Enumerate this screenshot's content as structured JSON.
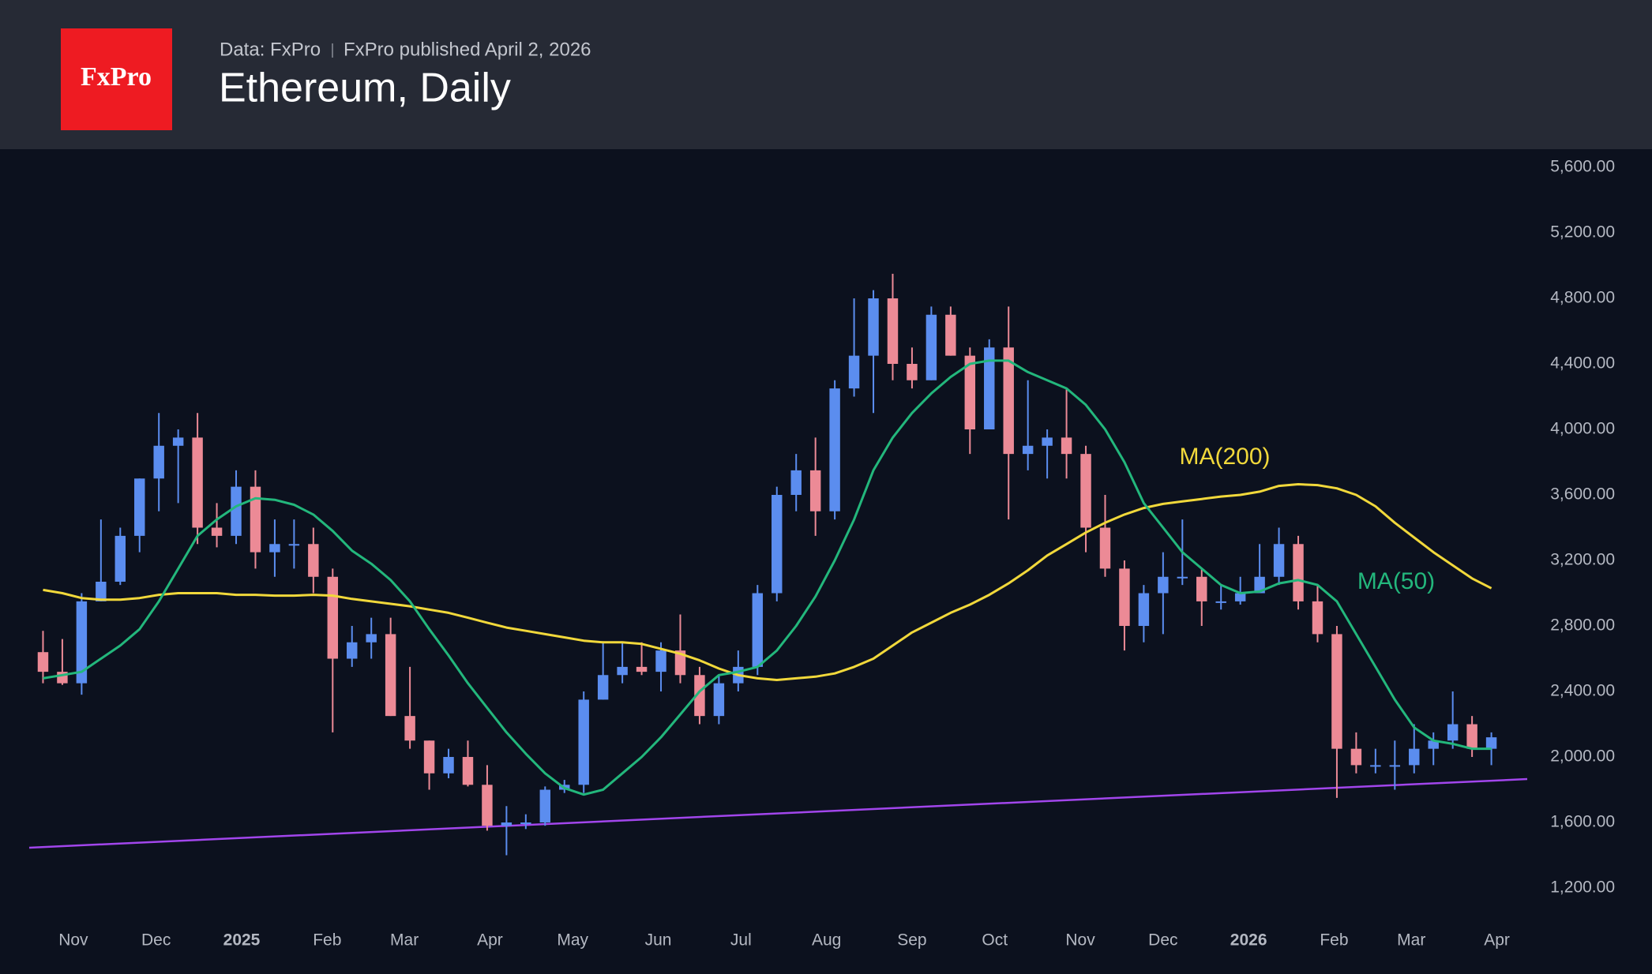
{
  "header": {
    "logo": "FxPro",
    "source": "Data: FxPro",
    "published": "FxPro published April 2, 2026",
    "title": "Ethereum, Daily"
  },
  "chart_data": {
    "type": "candlestick",
    "x": [
      "2024-10-21",
      "2024-10-28",
      "2024-11-04",
      "2024-11-11",
      "2024-11-18",
      "2024-11-25",
      "2024-12-02",
      "2024-12-09",
      "2024-12-16",
      "2024-12-23",
      "2024-12-30",
      "2025-01-06",
      "2025-01-13",
      "2025-01-20",
      "2025-01-27",
      "2025-02-03",
      "2025-02-10",
      "2025-02-17",
      "2025-02-24",
      "2025-03-03",
      "2025-03-10",
      "2025-03-17",
      "2025-03-24",
      "2025-03-31",
      "2025-04-07",
      "2025-04-14",
      "2025-04-21",
      "2025-04-28",
      "2025-05-05",
      "2025-05-12",
      "2025-05-19",
      "2025-05-26",
      "2025-06-02",
      "2025-06-09",
      "2025-06-16",
      "2025-06-23",
      "2025-06-30",
      "2025-07-07",
      "2025-07-14",
      "2025-07-21",
      "2025-07-28",
      "2025-08-04",
      "2025-08-11",
      "2025-08-18",
      "2025-08-25",
      "2025-09-01",
      "2025-09-08",
      "2025-09-15",
      "2025-09-22",
      "2025-09-29",
      "2025-10-06",
      "2025-10-13",
      "2025-10-20",
      "2025-10-27",
      "2025-11-03",
      "2025-11-10",
      "2025-11-17",
      "2025-11-24",
      "2025-12-01",
      "2025-12-08",
      "2025-12-15",
      "2025-12-22",
      "2025-12-29",
      "2026-01-05",
      "2026-01-12",
      "2026-01-19",
      "2026-01-26",
      "2026-02-02",
      "2026-02-09",
      "2026-02-16",
      "2026-02-23",
      "2026-03-02",
      "2026-03-09",
      "2026-03-16",
      "2026-03-23",
      "2026-03-30"
    ],
    "open": [
      2640,
      2520,
      2450,
      2950,
      3070,
      3350,
      3700,
      3900,
      3950,
      3400,
      3350,
      3650,
      3250,
      3300,
      3300,
      3100,
      2600,
      2700,
      2750,
      2250,
      2100,
      1900,
      2000,
      1830,
      1580,
      1600,
      1600,
      1800,
      1830,
      2350,
      2500,
      2550,
      2520,
      2650,
      2500,
      2250,
      2450,
      2550,
      3000,
      3600,
      3750,
      3500,
      4250,
      4450,
      4800,
      4400,
      4300,
      4700,
      4450,
      4000,
      4500,
      3850,
      3900,
      3950,
      3850,
      3400,
      3150,
      2800,
      3000,
      3100,
      3100,
      2950,
      2950,
      3000,
      3100,
      3300,
      2950,
      2750,
      2050,
      1950,
      1950,
      1950,
      2050,
      2100,
      2200,
      2050
    ],
    "high": [
      2770,
      2720,
      3000,
      3450,
      3400,
      3700,
      4100,
      4000,
      4100,
      3550,
      3750,
      3750,
      3450,
      3450,
      3400,
      3150,
      2800,
      2850,
      2850,
      2550,
      2100,
      2050,
      2100,
      1950,
      1700,
      1650,
      1820,
      1860,
      2400,
      2700,
      2700,
      2700,
      2700,
      2870,
      2550,
      2500,
      2650,
      3050,
      3650,
      3850,
      3950,
      4300,
      4800,
      4850,
      4950,
      4500,
      4750,
      4750,
      4500,
      4550,
      4750,
      4300,
      4000,
      4250,
      3900,
      3600,
      3200,
      3050,
      3250,
      3450,
      3150,
      3050,
      3100,
      3300,
      3400,
      3350,
      3050,
      2800,
      2150,
      2050,
      2100,
      2200,
      2150,
      2400,
      2250,
      2150
    ],
    "low": [
      2450,
      2440,
      2380,
      2950,
      3050,
      3250,
      3500,
      3550,
      3300,
      3280,
      3300,
      3150,
      3100,
      3150,
      3000,
      2150,
      2550,
      2600,
      2250,
      2050,
      1800,
      1870,
      1820,
      1550,
      1400,
      1560,
      1580,
      1780,
      1780,
      2350,
      2450,
      2500,
      2400,
      2450,
      2200,
      2200,
      2400,
      2500,
      2950,
      3500,
      3350,
      3450,
      4200,
      4100,
      4300,
      4250,
      4300,
      4450,
      3850,
      4000,
      3450,
      3750,
      3700,
      3700,
      3250,
      3100,
      2650,
      2700,
      2750,
      3050,
      2800,
      2900,
      2930,
      3000,
      3050,
      2900,
      2700,
      1750,
      1900,
      1900,
      1800,
      1900,
      1950,
      2050,
      2000,
      1950
    ],
    "close": [
      2520,
      2450,
      2950,
      3070,
      3350,
      3700,
      3900,
      3950,
      3400,
      3350,
      3650,
      3250,
      3300,
      3300,
      3100,
      2600,
      2700,
      2750,
      2250,
      2100,
      1900,
      2000,
      1830,
      1580,
      1600,
      1600,
      1800,
      1830,
      2350,
      2500,
      2550,
      2520,
      2650,
      2500,
      2250,
      2450,
      2550,
      3000,
      3600,
      3750,
      3500,
      4250,
      4450,
      4800,
      4400,
      4300,
      4700,
      4450,
      4000,
      4500,
      3850,
      3900,
      3950,
      3850,
      3400,
      3150,
      2800,
      3000,
      3100,
      3100,
      2950,
      2950,
      3000,
      3100,
      3300,
      2950,
      2750,
      2050,
      1950,
      1950,
      1950,
      2050,
      2100,
      2200,
      2050,
      2120
    ],
    "up_color": "#5b8def",
    "down_color": "#ec8a96",
    "series": [
      {
        "name": "MA(200)",
        "color": "#f1d83b",
        "values": [
          3020,
          3000,
          2970,
          2960,
          2960,
          2970,
          2990,
          3000,
          3000,
          3000,
          2990,
          2990,
          2985,
          2985,
          2990,
          2985,
          2965,
          2950,
          2935,
          2920,
          2900,
          2880,
          2850,
          2820,
          2790,
          2770,
          2750,
          2730,
          2710,
          2700,
          2700,
          2690,
          2660,
          2630,
          2590,
          2540,
          2500,
          2480,
          2470,
          2480,
          2490,
          2510,
          2550,
          2600,
          2680,
          2760,
          2820,
          2880,
          2930,
          2990,
          3060,
          3140,
          3230,
          3300,
          3370,
          3430,
          3480,
          3520,
          3545,
          3560,
          3575,
          3590,
          3600,
          3620,
          3655,
          3665,
          3660,
          3640,
          3600,
          3530,
          3430,
          3340,
          3250,
          3170,
          3090,
          3030
        ]
      },
      {
        "name": "MA(50)",
        "color": "#23b77c",
        "values": [
          2480,
          2500,
          2520,
          2600,
          2680,
          2780,
          2950,
          3150,
          3350,
          3450,
          3530,
          3580,
          3570,
          3540,
          3480,
          3380,
          3260,
          3180,
          3080,
          2950,
          2780,
          2620,
          2450,
          2300,
          2150,
          2020,
          1900,
          1810,
          1770,
          1800,
          1900,
          2000,
          2120,
          2260,
          2400,
          2500,
          2520,
          2550,
          2650,
          2800,
          2980,
          3200,
          3450,
          3750,
          3950,
          4100,
          4220,
          4320,
          4400,
          4420,
          4420,
          4350,
          4300,
          4250,
          4150,
          4000,
          3800,
          3550,
          3400,
          3250,
          3150,
          3050,
          3000,
          3010,
          3060,
          3080,
          3050,
          2950,
          2750,
          2550,
          2350,
          2180,
          2100,
          2080,
          2050,
          2050
        ]
      }
    ],
    "trendline": {
      "color": "#a246ec",
      "x": [
        "2024-10-16",
        "2026-04-12"
      ],
      "values": [
        1446,
        1865
      ]
    },
    "xlim": [
      "2024-10-16",
      "2026-04-12"
    ],
    "ylim": [
      964,
      5706
    ],
    "xticks": [
      {
        "value": "2024-11-01",
        "label": "Nov"
      },
      {
        "value": "2024-12-01",
        "label": "Dec"
      },
      {
        "value": "2025-01-01",
        "label": "2025"
      },
      {
        "value": "2025-02-01",
        "label": "Feb"
      },
      {
        "value": "2025-03-01",
        "label": "Mar"
      },
      {
        "value": "2025-04-01",
        "label": "Apr"
      },
      {
        "value": "2025-05-01",
        "label": "May"
      },
      {
        "value": "2025-06-01",
        "label": "Jun"
      },
      {
        "value": "2025-07-01",
        "label": "Jul"
      },
      {
        "value": "2025-08-01",
        "label": "Aug"
      },
      {
        "value": "2025-09-01",
        "label": "Sep"
      },
      {
        "value": "2025-10-01",
        "label": "Oct"
      },
      {
        "value": "2025-11-01",
        "label": "Nov"
      },
      {
        "value": "2025-12-01",
        "label": "Dec"
      },
      {
        "value": "2026-01-01",
        "label": "2026"
      },
      {
        "value": "2026-02-01",
        "label": "Feb"
      },
      {
        "value": "2026-03-01",
        "label": "Mar"
      },
      {
        "value": "2026-04-01",
        "label": "Apr"
      }
    ],
    "yticks": [
      {
        "value": 1200,
        "label": "1,200.00"
      },
      {
        "value": 1600,
        "label": "1,600.00"
      },
      {
        "value": 2000,
        "label": "2,000.00"
      },
      {
        "value": 2400,
        "label": "2,400.00"
      },
      {
        "value": 2800,
        "label": "2,800.00"
      },
      {
        "value": 3200,
        "label": "3,200.00"
      },
      {
        "value": 3600,
        "label": "3,600.00"
      },
      {
        "value": 4000,
        "label": "4,000.00"
      },
      {
        "value": 4400,
        "label": "4,400.00"
      },
      {
        "value": 4800,
        "label": "4,800.00"
      },
      {
        "value": 5200,
        "label": "5,200.00"
      },
      {
        "value": 5600,
        "label": "5,600.00"
      }
    ]
  }
}
